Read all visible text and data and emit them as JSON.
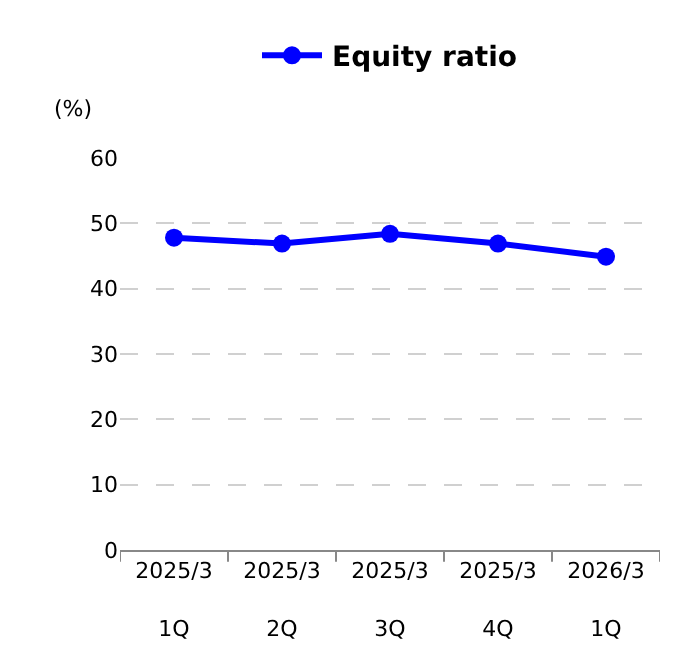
{
  "chart_data": {
    "type": "line",
    "ylabel": "(%)",
    "categories": [
      "2025/3\n1Q",
      "2025/3\n2Q",
      "2025/3\n3Q",
      "2025/3\n4Q",
      "2026/3\n1Q"
    ],
    "series": [
      {
        "name": "Equity ratio",
        "color": "#0000ff",
        "values": [
          47.8,
          46.9,
          48.4,
          46.9,
          44.9
        ]
      }
    ],
    "ylim": [
      0,
      60
    ],
    "yticks": [
      0,
      10,
      20,
      30,
      40,
      50,
      60
    ],
    "grid": "y",
    "legend": "top",
    "marker": "circle",
    "line_style": "solid"
  }
}
